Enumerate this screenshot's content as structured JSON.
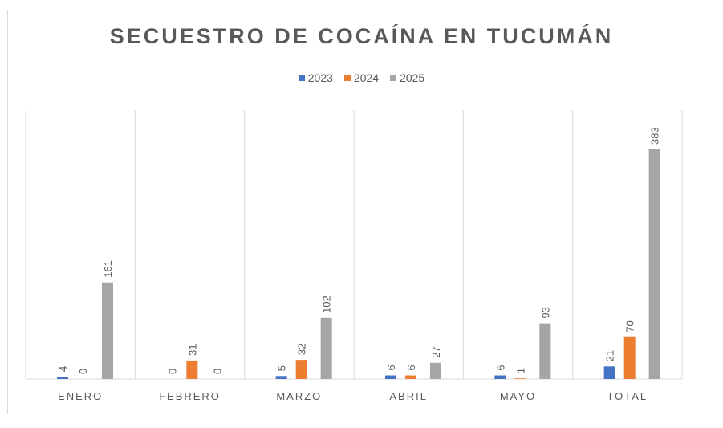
{
  "chart_data": {
    "type": "bar",
    "title": "SECUESTRO DE COCAÍNA EN TUCUMÁN",
    "categories": [
      "ENERO",
      "FEBRERO",
      "MARZO",
      "ABRIL",
      "MAYO",
      "TOTAL"
    ],
    "series": [
      {
        "name": "2023",
        "color": "#4472c4",
        "values": [
          4,
          0,
          5,
          6,
          6,
          21
        ]
      },
      {
        "name": "2024",
        "color": "#ed7d31",
        "values": [
          0,
          31,
          32,
          6,
          1,
          70
        ]
      },
      {
        "name": "2025",
        "color": "#a5a5a5",
        "values": [
          161,
          0,
          102,
          27,
          93,
          383
        ]
      }
    ],
    "ylim": [
      0,
      383
    ],
    "grid": "vertical category separators",
    "legend": "top",
    "data_labels": true
  }
}
